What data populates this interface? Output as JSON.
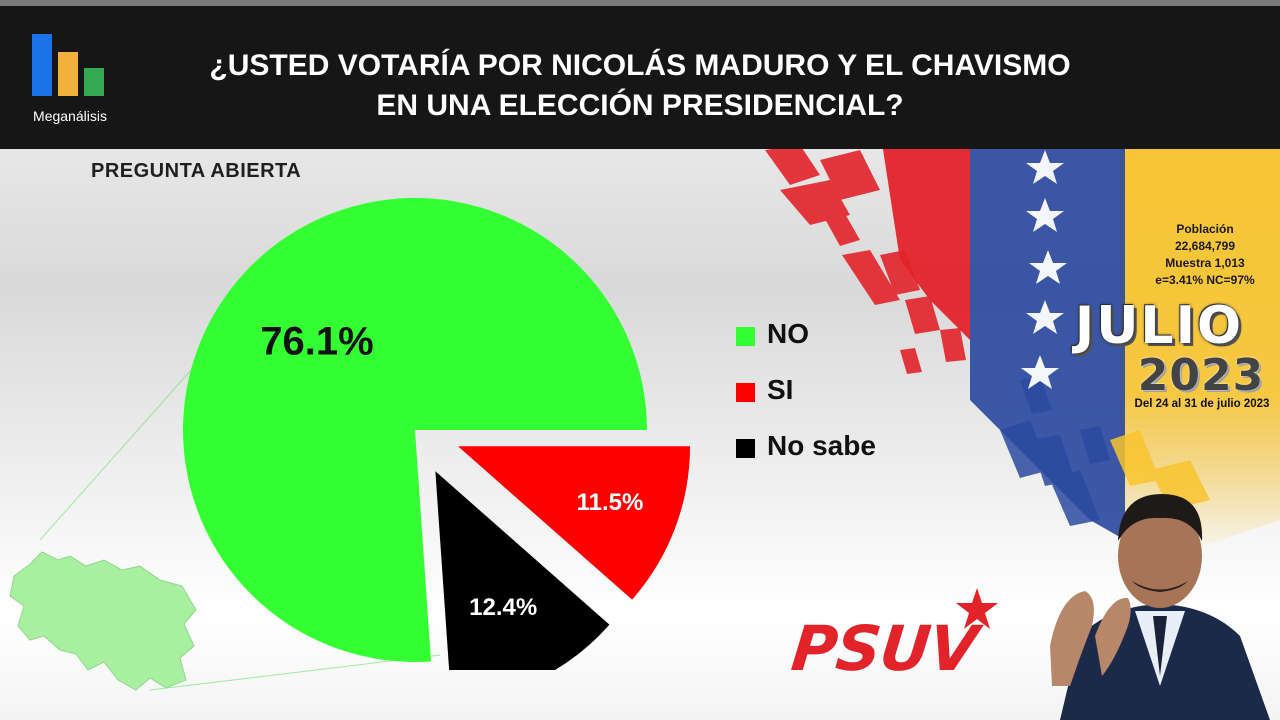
{
  "header": {
    "logo_text": "Meganálisis",
    "title_line1": "¿USTED VOTARÍA POR NICOLÁS MADURO Y EL CHAVISMO",
    "title_line2": "EN UNA ELECCIÓN PRESIDENCIAL?"
  },
  "subtitle": "PREGUNTA  ABIERTA",
  "chart_data": {
    "type": "pie",
    "title": "¿USTED VOTARÍA POR NICOLÁS MADURO Y EL CHAVISMO EN UNA ELECCIÓN PRESIDENCIAL?",
    "slices": [
      {
        "label": "NO",
        "value": 76.1,
        "display": "76.1%",
        "color": "#33ff33"
      },
      {
        "label": "SI",
        "value": 11.5,
        "display": "11.5%",
        "color": "#ff0000"
      },
      {
        "label": "No sabe",
        "value": 12.4,
        "display": "12.4%",
        "color": "#000000"
      }
    ],
    "legend_position": "right"
  },
  "info": {
    "poblacion_label": "Población",
    "poblacion_value": "22,684,799",
    "muestra": "Muestra 1,013",
    "error": "e=3.41%  NC=97%"
  },
  "period": {
    "month": "JULIO",
    "year": "2023",
    "range": "Del 24 al 31 de julio 2023"
  },
  "brand": {
    "party": "PSUV"
  },
  "colors": {
    "header_bg": "#161616",
    "flag_yellow": "#f8c42e",
    "flag_blue": "#2b4aa0",
    "flag_red": "#e3232a"
  }
}
